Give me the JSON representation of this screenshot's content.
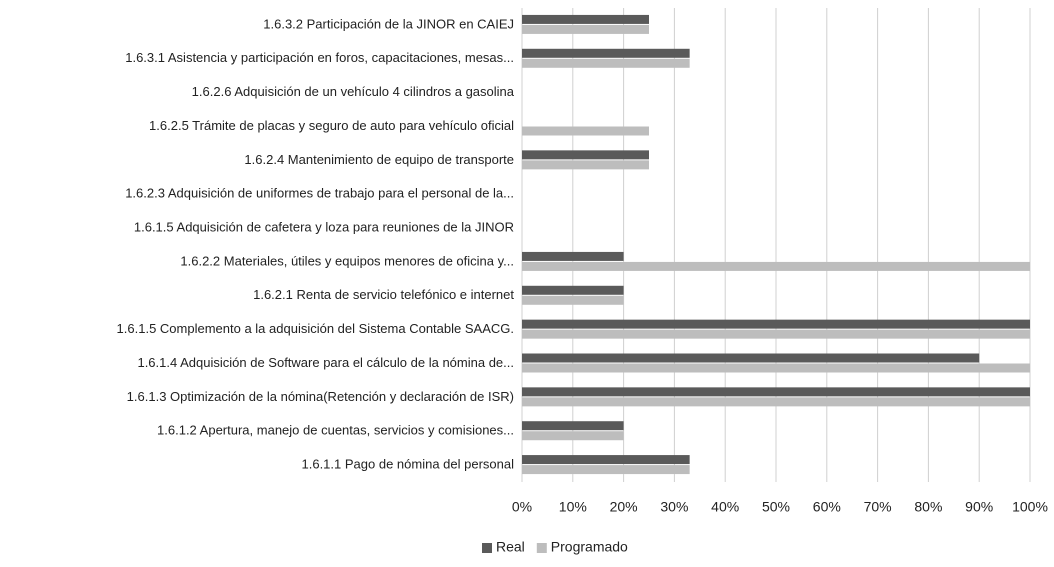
{
  "chart_data": {
    "type": "hbar",
    "categories": [
      "1.6.3.2 Participación de la JINOR en CAIEJ",
      "1.6.3.1 Asistencia y participación en foros, capacitaciones, mesas...",
      "1.6.2.6 Adquisición de un vehículo 4 cilindros a gasolina",
      "1.6.2.5 Trámite de placas y seguro de auto para vehículo oficial",
      "1.6.2.4 Mantenimiento de equipo de transporte",
      "1.6.2.3 Adquisición de uniformes de trabajo para el personal de la...",
      "1.6.1.5 Adquisición de cafetera y loza para reuniones de la JINOR",
      "1.6.2.2 Materiales, útiles y equipos menores de oficina y...",
      "1.6.2.1 Renta de servicio telefónico e internet",
      "1.6.1.5 Complemento a la adquisición del Sistema Contable SAACG.",
      "1.6.1.4 Adquisición de Software para el cálculo de la nómina de...",
      "1.6.1.3 Optimización de la nómina(Retención y declaración de ISR)",
      "1.6.1.2 Apertura, manejo de cuentas, servicios y comisiones...",
      "1.6.1.1 Pago de nómina del personal"
    ],
    "series": [
      {
        "name": "Real",
        "color": "#5a5a5a",
        "values": [
          25,
          33,
          0,
          0,
          25,
          0,
          0,
          20,
          20,
          100,
          90,
          100,
          20,
          33
        ]
      },
      {
        "name": "Programado",
        "color": "#bdbdbd",
        "values": [
          25,
          33,
          0,
          25,
          25,
          0,
          0,
          100,
          20,
          100,
          100,
          100,
          20,
          33
        ]
      }
    ],
    "xlim": [
      0,
      100
    ],
    "xticks": [
      {
        "value": 0,
        "label": "0%"
      },
      {
        "value": 10,
        "label": "10%"
      },
      {
        "value": 20,
        "label": "20%"
      },
      {
        "value": 30,
        "label": "30%"
      },
      {
        "value": 40,
        "label": "40%"
      },
      {
        "value": 50,
        "label": "50%"
      },
      {
        "value": 60,
        "label": "60%"
      },
      {
        "value": 70,
        "label": "70%"
      },
      {
        "value": 80,
        "label": "80%"
      },
      {
        "value": 90,
        "label": "90%"
      },
      {
        "value": 100,
        "label": "100%"
      }
    ],
    "grid": true,
    "legend": "bottom"
  }
}
